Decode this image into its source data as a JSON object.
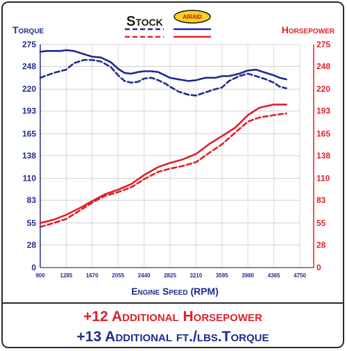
{
  "chart_data": {
    "type": "line",
    "title": "",
    "legend": {
      "stock_label": "Stock",
      "airaid_label": "AIRAID"
    },
    "left_axis_label": "Torque",
    "right_axis_label": "Horsepower",
    "xlabel": "Engine Speed (RPM)",
    "x_ticks": [
      "900",
      "1285",
      "1670",
      "2055",
      "2440",
      "2825",
      "3210",
      "3595",
      "3980",
      "4365",
      "4750"
    ],
    "y_ticks": [
      "0",
      "28",
      "55",
      "83",
      "110",
      "138",
      "165",
      "193",
      "220",
      "248",
      "275"
    ],
    "xlim": [
      900,
      4750
    ],
    "ylim": [
      0,
      275
    ],
    "colors": {
      "torque": "#1e2b8f",
      "horsepower": "#e0202a"
    },
    "series": [
      {
        "name": "Stock Torque",
        "style": "dashed",
        "color_key": "torque",
        "x": [
          900,
          1100,
          1285,
          1400,
          1550,
          1670,
          1800,
          1950,
          2055,
          2150,
          2250,
          2350,
          2440,
          2550,
          2650,
          2750,
          2825,
          2950,
          3100,
          3210,
          3350,
          3500,
          3595,
          3700,
          3850,
          3980,
          4100,
          4250,
          4365,
          4450,
          4550
        ],
        "y": [
          234,
          240,
          244,
          252,
          256,
          256,
          254,
          247,
          237,
          230,
          228,
          229,
          233,
          234,
          231,
          227,
          223,
          217,
          213,
          212,
          216,
          220,
          222,
          230,
          236,
          239,
          236,
          232,
          228,
          223,
          221
        ]
      },
      {
        "name": "AIRAID Torque",
        "style": "solid",
        "color_key": "torque",
        "x": [
          900,
          1000,
          1100,
          1200,
          1285,
          1400,
          1550,
          1670,
          1800,
          1950,
          2055,
          2150,
          2250,
          2350,
          2440,
          2550,
          2650,
          2750,
          2825,
          2950,
          3100,
          3210,
          3350,
          3500,
          3595,
          3700,
          3850,
          3980,
          4100,
          4250,
          4365,
          4450,
          4550
        ],
        "y": [
          266,
          267,
          267,
          267,
          268,
          267,
          263,
          260,
          259,
          253,
          245,
          240,
          239,
          241,
          242,
          242,
          241,
          237,
          234,
          232,
          230,
          231,
          234,
          234,
          236,
          236,
          239,
          243,
          244,
          240,
          237,
          234,
          232
        ]
      },
      {
        "name": "Stock Horsepower",
        "style": "dashed",
        "color_key": "horsepower",
        "x": [
          900,
          1100,
          1285,
          1500,
          1670,
          1850,
          2055,
          2250,
          2440,
          2650,
          2825,
          3000,
          3210,
          3400,
          3595,
          3800,
          3980,
          4150,
          4365,
          4550
        ],
        "y": [
          50,
          55,
          60,
          71,
          80,
          88,
          93,
          99,
          109,
          118,
          122,
          125,
          130,
          141,
          152,
          167,
          180,
          185,
          188,
          190
        ]
      },
      {
        "name": "AIRAID Horsepower",
        "style": "solid",
        "color_key": "horsepower",
        "x": [
          900,
          1100,
          1285,
          1500,
          1670,
          1850,
          2055,
          2250,
          2440,
          2650,
          2825,
          3000,
          3210,
          3400,
          3595,
          3800,
          3980,
          4150,
          4365,
          4550
        ],
        "y": [
          55,
          59,
          65,
          74,
          82,
          90,
          96,
          103,
          114,
          124,
          129,
          133,
          140,
          152,
          162,
          173,
          188,
          197,
          201,
          201
        ]
      }
    ]
  },
  "footer": {
    "line1": "+12 Additional Horsepower",
    "line2": "+13 Additional ft./lbs.Torque"
  }
}
